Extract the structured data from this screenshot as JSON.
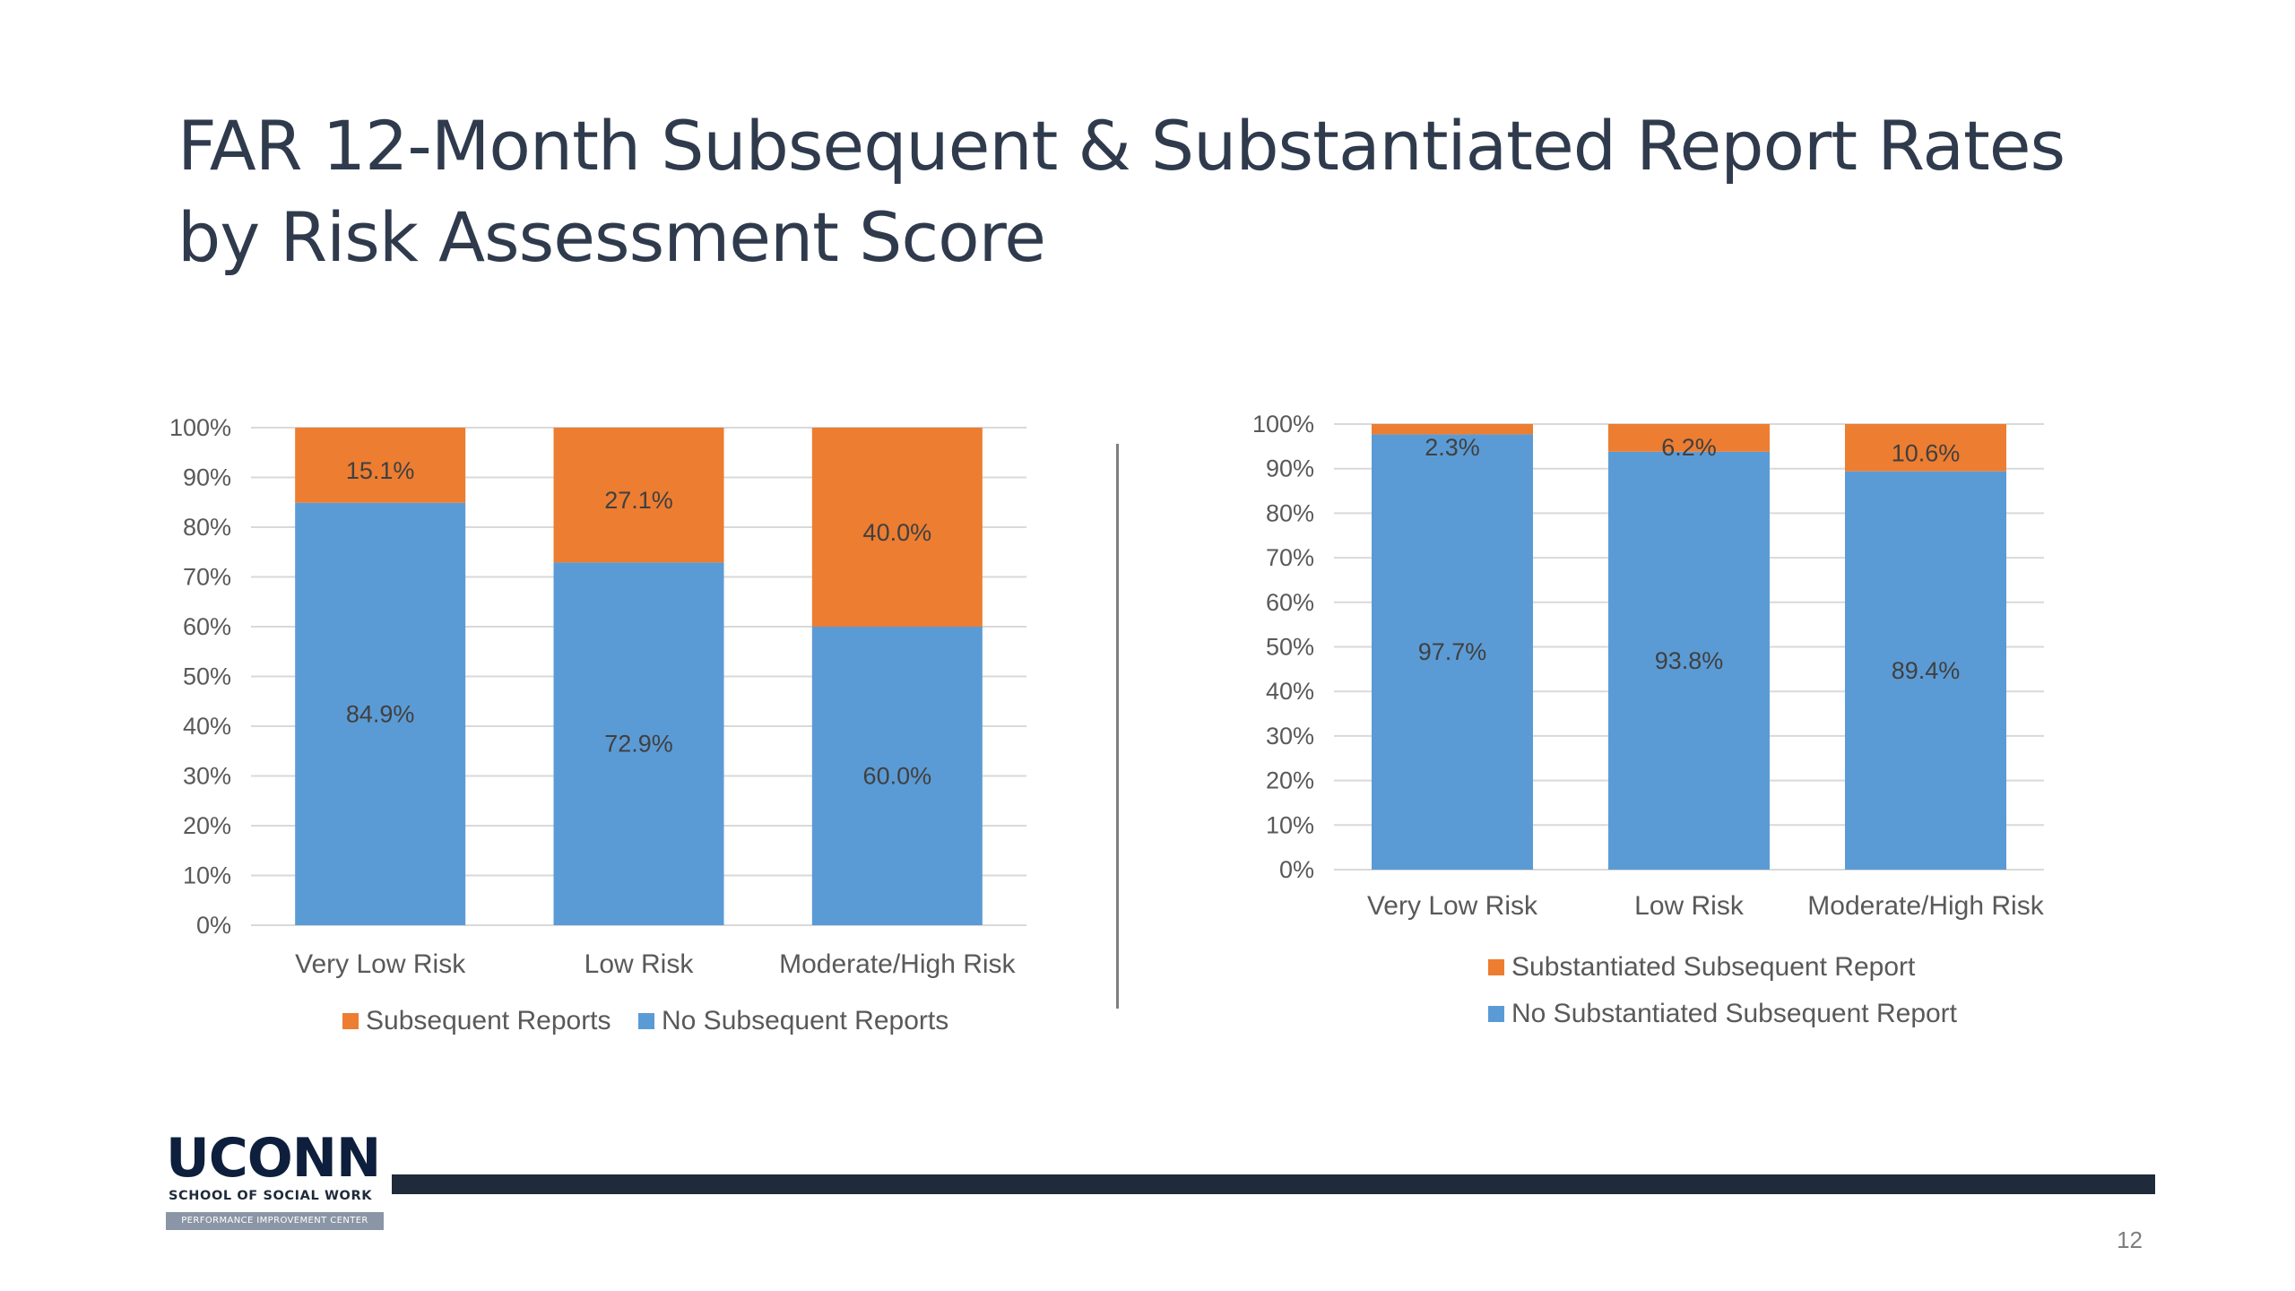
{
  "slide": {
    "title_line1": "FAR 12-Month Subsequent & Substantiated Report Rates",
    "title_line2": "by Risk Assessment Score",
    "page_number": "12"
  },
  "logo": {
    "wordmark": "UCONN",
    "subtitle": "SCHOOL OF SOCIAL WORK",
    "band": "PERFORMANCE IMPROVEMENT CENTER"
  },
  "colors": {
    "orange": "#ed7d31",
    "blue": "#5b9bd5",
    "grid": "#d9d9d9",
    "footer_bar": "#1f2a3a"
  },
  "chart_data": [
    {
      "type": "bar",
      "stacked": true,
      "categories": [
        "Very Low Risk",
        "Low Risk",
        "Moderate/High Risk"
      ],
      "series": [
        {
          "name": "No Subsequent Reports",
          "color": "#5b9bd5",
          "values": [
            84.9,
            72.9,
            60.0
          ],
          "labels": [
            "84.9%",
            "72.9%",
            "60.0%"
          ]
        },
        {
          "name": "Subsequent Reports",
          "color": "#ed7d31",
          "values": [
            15.1,
            27.1,
            40.0
          ],
          "labels": [
            "15.1%",
            "27.1%",
            "40.0%"
          ]
        }
      ],
      "legend_order": [
        "Subsequent Reports",
        "No Subsequent Reports"
      ],
      "legend_position": "bottom",
      "ylim": [
        0,
        100
      ],
      "yticks": [
        "0%",
        "10%",
        "20%",
        "30%",
        "40%",
        "50%",
        "60%",
        "70%",
        "80%",
        "90%",
        "100%"
      ],
      "grid": true
    },
    {
      "type": "bar",
      "stacked": true,
      "categories": [
        "Very Low Risk",
        "Low Risk",
        "Moderate/High Risk"
      ],
      "series": [
        {
          "name": "No Substantiated Subsequent Report",
          "color": "#5b9bd5",
          "values": [
            97.7,
            93.8,
            89.4
          ],
          "labels": [
            "97.7%",
            "93.8%",
            "89.4%"
          ]
        },
        {
          "name": "Substantiated Subsequent Report",
          "color": "#ed7d31",
          "values": [
            2.3,
            6.2,
            10.6
          ],
          "labels": [
            "2.3%",
            "6.2%",
            "10.6%"
          ]
        }
      ],
      "legend_order": [
        "Substantiated Subsequent Report",
        "No Substantiated Subsequent Report"
      ],
      "legend_position": "bottom",
      "ylim": [
        0,
        100
      ],
      "yticks": [
        "0%",
        "10%",
        "20%",
        "30%",
        "40%",
        "50%",
        "60%",
        "70%",
        "80%",
        "90%",
        "100%"
      ],
      "grid": true
    }
  ]
}
